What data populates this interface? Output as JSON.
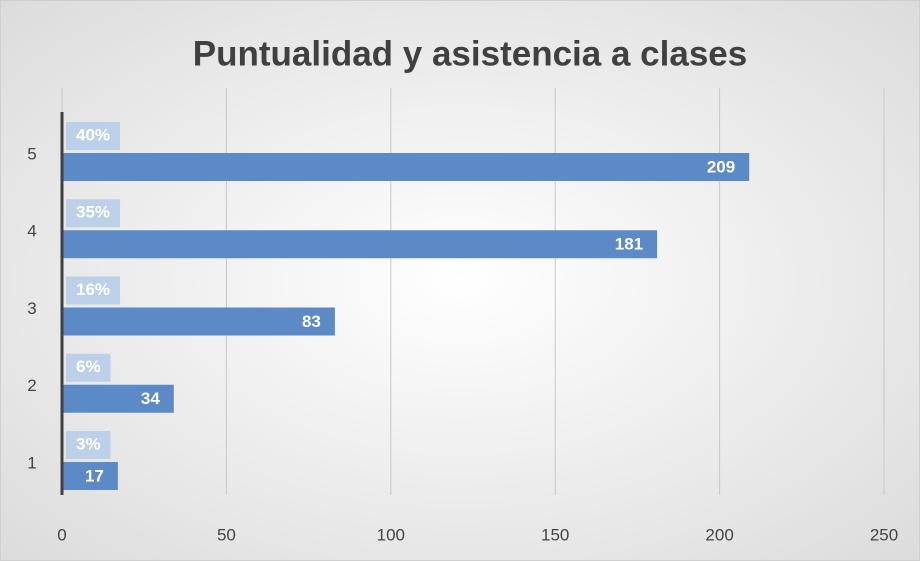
{
  "chart_data": {
    "type": "bar",
    "orientation": "horizontal",
    "title": "Puntualidad y asistencia a clases",
    "categories": [
      "1",
      "2",
      "3",
      "4",
      "5"
    ],
    "values": [
      17,
      34,
      83,
      181,
      209
    ],
    "percent_labels": [
      "3%",
      "6%",
      "16%",
      "35%",
      "40%"
    ],
    "color": "#5b8ac6",
    "xlim": [
      0,
      250
    ],
    "xticks": [
      0,
      50,
      100,
      150,
      200,
      250
    ],
    "grid": true
  }
}
